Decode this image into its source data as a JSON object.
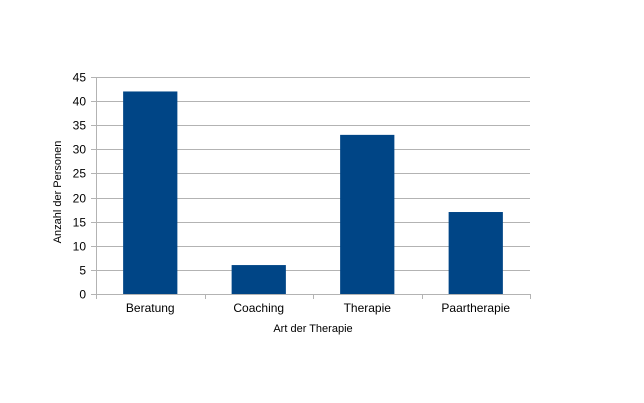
{
  "chart_data": {
    "type": "bar",
    "title": "",
    "xlabel": "Art der Therapie",
    "ylabel": "Anzahl der Personen",
    "categories": [
      "Beratung",
      "Coaching",
      "Therapie",
      "Paartherapie"
    ],
    "values": [
      42,
      6,
      33,
      17
    ],
    "ylim": [
      0,
      45
    ],
    "yticks": [
      0,
      5,
      10,
      15,
      20,
      25,
      30,
      35,
      40,
      45
    ],
    "grid": true,
    "legend": "none",
    "bar_color": "#004586"
  }
}
